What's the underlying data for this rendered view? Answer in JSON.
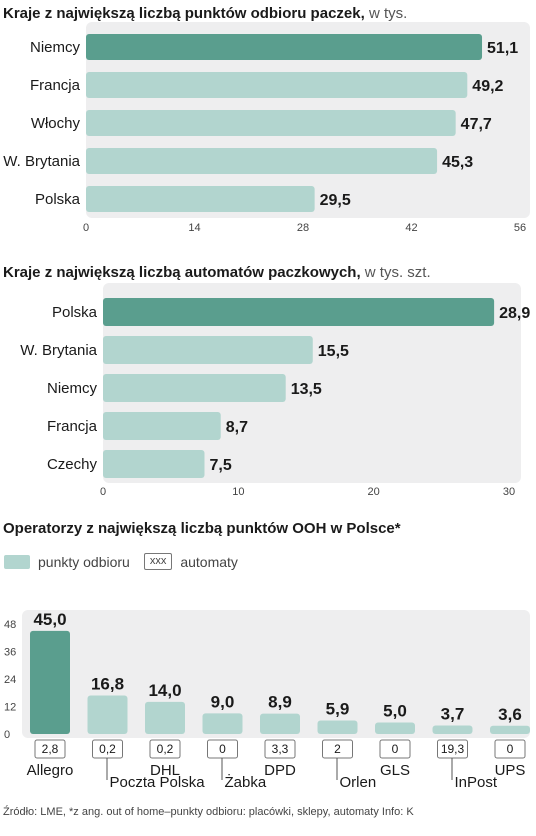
{
  "colors": {
    "highlight": "#5a9e8e",
    "bar": "#b2d5cf",
    "panel": "#eeeeef"
  },
  "chart_data": [
    {
      "type": "bar",
      "orientation": "horizontal",
      "title": "Kraje z największą liczbą punktów odbioru paczek,",
      "unit": "w tys.",
      "categories": [
        "Niemcy",
        "Francja",
        "Włochy",
        "W. Brytania",
        "Polska"
      ],
      "values": [
        51.1,
        49.2,
        47.7,
        45.3,
        29.5
      ],
      "value_labels": [
        "51,1",
        "49,2",
        "47,7",
        "45,3",
        "29,5"
      ],
      "highlight_index": 0,
      "xlim": [
        0,
        56
      ],
      "ticks": [
        "0",
        "14",
        "28",
        "42",
        "56"
      ]
    },
    {
      "type": "bar",
      "orientation": "horizontal",
      "title": "Kraje z największą liczbą automatów paczkowych,",
      "unit": "w tys. szt.",
      "categories": [
        "Polska",
        "W. Brytania",
        "Niemcy",
        "Francja",
        "Czechy"
      ],
      "values": [
        28.9,
        15.5,
        13.5,
        8.7,
        7.5
      ],
      "value_labels": [
        "28,9",
        "15,5",
        "13,5",
        "8,7",
        "7,5"
      ],
      "highlight_index": 0,
      "xlim": [
        0,
        30
      ],
      "ticks": [
        "0",
        "10",
        "20",
        "30"
      ]
    },
    {
      "type": "bar",
      "orientation": "vertical",
      "title": "Operatorzy z największą liczbą punktów OOH w Polsce*",
      "legend": [
        "punkty odbioru",
        "xxx",
        "automaty"
      ],
      "categories": [
        "Allegro",
        "Poczta Polska",
        "DHL",
        "Żabka",
        "DPD",
        "Orlen",
        "GLS",
        "InPost",
        "UPS"
      ],
      "values": [
        45.0,
        16.8,
        14.0,
        9.0,
        8.9,
        5.9,
        5.0,
        3.7,
        3.6
      ],
      "value_labels": [
        "45,0",
        "16,8",
        "14,0",
        "9,0",
        "8,9",
        "5,9",
        "5,0",
        "3,7",
        "3,6"
      ],
      "automaty": [
        2.8,
        0.2,
        0.2,
        0,
        3.3,
        2,
        0,
        19.3,
        0
      ],
      "automaty_labels": [
        "2,8",
        "0,2",
        "0,2",
        "0",
        "3,3",
        "2",
        "0",
        "19,3",
        "0"
      ],
      "highlight_index": 0,
      "ylim": [
        0,
        48
      ],
      "ticks": [
        "0",
        "12",
        "24",
        "36",
        "48"
      ]
    }
  ],
  "source": "Źródło: LME, *z ang. out of home–punkty odbioru: placówki, sklepy, automaty  Info: K"
}
